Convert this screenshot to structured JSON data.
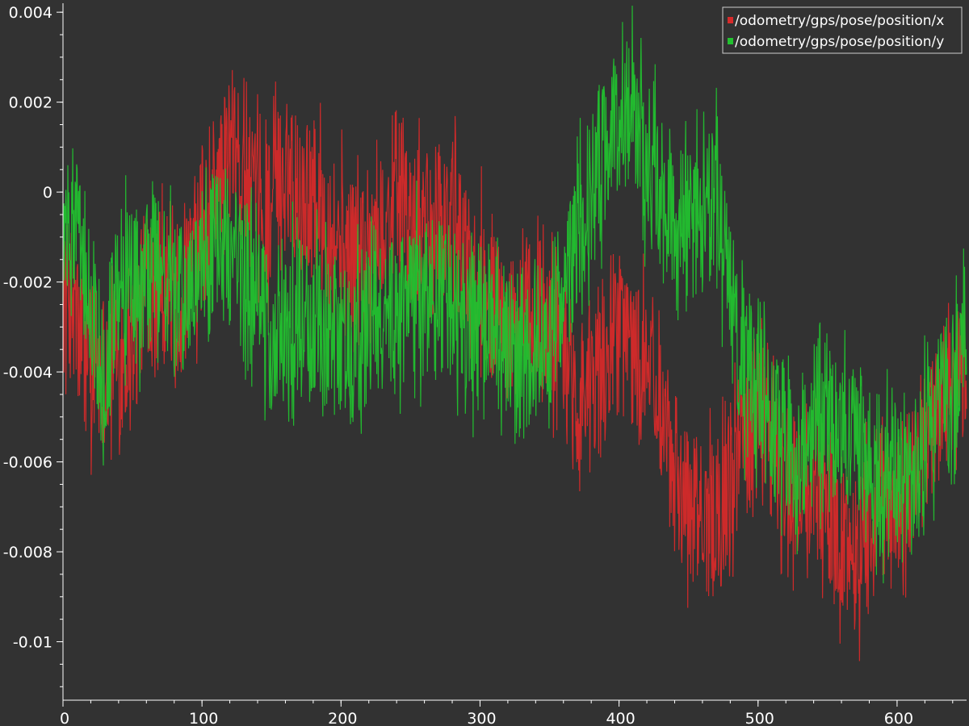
{
  "chart_data": {
    "type": "line",
    "title": "",
    "xlabel": "",
    "ylabel": "",
    "xlim": [
      0,
      650
    ],
    "ylim": [
      -0.0113,
      0.0042
    ],
    "grid": false,
    "legend_position": "top-right",
    "x_ticks": [
      0,
      100,
      200,
      300,
      400,
      500,
      600
    ],
    "x_tick_labels": [
      "0",
      "100",
      "200",
      "300",
      "400",
      "500",
      "600"
    ],
    "y_ticks": [
      0.004,
      0.002,
      0,
      -0.002,
      -0.004,
      -0.006,
      -0.008,
      -0.01
    ],
    "y_tick_labels": [
      "0.004",
      "0.002",
      "0",
      "-0.002",
      "-0.004",
      "-0.006",
      "-0.008",
      "-0.01"
    ],
    "background_color": "#323232",
    "axis_color": "#ffffff",
    "series": [
      {
        "name": "/odometry/gps/pose/position/x",
        "color": "#d62a2a",
        "x": [
          0,
          10,
          20,
          30,
          40,
          50,
          60,
          70,
          80,
          90,
          100,
          110,
          120,
          130,
          140,
          150,
          160,
          170,
          180,
          190,
          200,
          210,
          220,
          230,
          240,
          250,
          260,
          270,
          280,
          290,
          300,
          310,
          320,
          330,
          340,
          350,
          360,
          370,
          380,
          390,
          400,
          410,
          420,
          430,
          440,
          450,
          460,
          470,
          480,
          490,
          500,
          510,
          520,
          530,
          540,
          550,
          560,
          570,
          580,
          590,
          600,
          610,
          620,
          630,
          640,
          650
        ],
        "values": [
          -0.002,
          -0.003,
          -0.0035,
          -0.0038,
          -0.0036,
          -0.0032,
          -0.002,
          -0.0015,
          -0.0025,
          -0.002,
          -0.001,
          0.0,
          0.0008,
          0.0005,
          -0.0005,
          -0.0002,
          0.0005,
          0.0,
          0.0,
          -0.0005,
          -0.0012,
          -0.0015,
          -0.001,
          -0.0008,
          0.0,
          -0.0008,
          -0.0012,
          -0.0005,
          -0.0008,
          -0.0014,
          -0.002,
          -0.0025,
          -0.003,
          -0.0032,
          -0.0025,
          -0.003,
          -0.0035,
          -0.0045,
          -0.0045,
          -0.0038,
          -0.003,
          -0.0035,
          -0.004,
          -0.005,
          -0.006,
          -0.007,
          -0.0072,
          -0.007,
          -0.0065,
          -0.0052,
          -0.0045,
          -0.0055,
          -0.0068,
          -0.0065,
          -0.0062,
          -0.007,
          -0.0078,
          -0.008,
          -0.0072,
          -0.007,
          -0.0068,
          -0.0065,
          -0.0055,
          -0.005,
          -0.0045,
          -0.004
        ]
      },
      {
        "name": "/odometry/gps/pose/position/y",
        "color": "#22c12f",
        "x": [
          0,
          10,
          20,
          30,
          40,
          50,
          60,
          70,
          80,
          90,
          100,
          110,
          120,
          130,
          140,
          150,
          160,
          170,
          180,
          190,
          200,
          210,
          220,
          230,
          240,
          250,
          260,
          270,
          280,
          290,
          300,
          310,
          320,
          330,
          340,
          350,
          360,
          370,
          380,
          390,
          400,
          410,
          420,
          430,
          440,
          450,
          460,
          470,
          480,
          490,
          500,
          510,
          520,
          530,
          540,
          550,
          560,
          570,
          580,
          590,
          600,
          610,
          620,
          630,
          640,
          650
        ],
        "values": [
          -0.0012,
          -0.0008,
          -0.0025,
          -0.0038,
          -0.002,
          -0.0018,
          -0.002,
          -0.0015,
          -0.0025,
          -0.0022,
          -0.0018,
          -0.0012,
          -0.0012,
          -0.002,
          -0.0022,
          -0.0035,
          -0.003,
          -0.0025,
          -0.003,
          -0.003,
          -0.0032,
          -0.0035,
          -0.0028,
          -0.0028,
          -0.0025,
          -0.0025,
          -0.0025,
          -0.0022,
          -0.0028,
          -0.0028,
          -0.0032,
          -0.0028,
          -0.0035,
          -0.0038,
          -0.0035,
          -0.0032,
          -0.0022,
          -0.0012,
          0.0002,
          0.0008,
          0.0015,
          0.0018,
          0.0008,
          0.0,
          -0.0005,
          -0.0008,
          -0.0005,
          -0.0002,
          -0.0025,
          -0.004,
          -0.0042,
          -0.0052,
          -0.0058,
          -0.0058,
          -0.005,
          -0.0048,
          -0.0052,
          -0.0055,
          -0.0058,
          -0.0068,
          -0.0062,
          -0.0065,
          -0.0055,
          -0.0048,
          -0.0045,
          -0.0025
        ]
      }
    ]
  }
}
